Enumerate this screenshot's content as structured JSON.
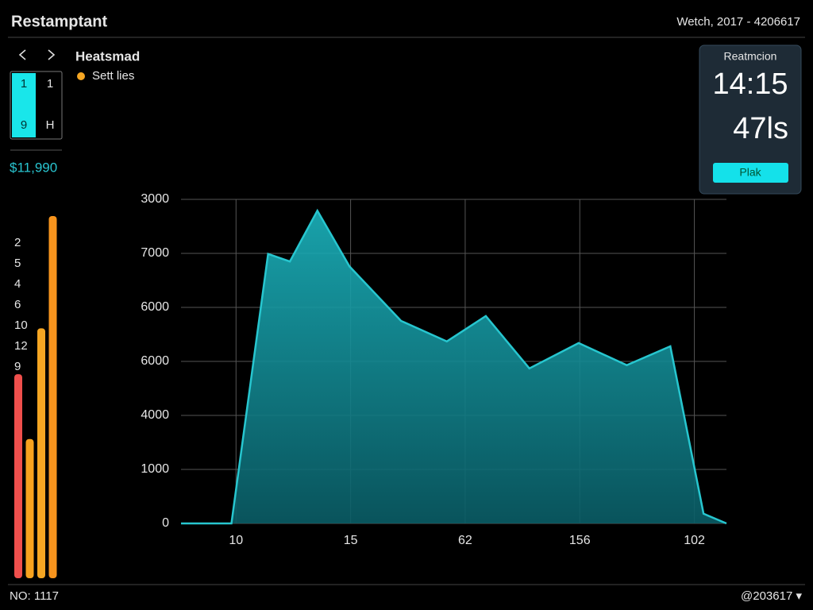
{
  "header": {
    "title": "Restamptant",
    "date": "Wetch, 2017 - 4206617"
  },
  "calendar": {
    "cells": [
      "1",
      "1",
      "9",
      "H"
    ]
  },
  "price": "$11,990",
  "panel": {
    "title": "Reatmcion",
    "time": "14:15",
    "value": "47ls",
    "button": "Plak"
  },
  "footer": {
    "left": "NO: 1117",
    "right": "@203617 ▾"
  },
  "chart_data": [
    {
      "type": "area",
      "title": "Heatsmad",
      "x": [
        -0.48,
        -0.04,
        0.28,
        0.47,
        0.71,
        0.99,
        1.44,
        1.84,
        2.18,
        2.56,
        2.99,
        3.41,
        3.79,
        4.08,
        4.28
      ],
      "series": [
        {
          "name": "Sett lies",
          "color": "#f5a623",
          "values": [
            0,
            0,
            4.99,
            4.85,
            5.79,
            4.76,
            3.75,
            3.37,
            3.84,
            2.87,
            3.34,
            2.93,
            3.28,
            0.18,
            0
          ]
        }
      ],
      "area_color": "#27c6cf",
      "xlim": [
        -0.48,
        4.28
      ],
      "ylim": [
        0,
        6
      ],
      "xticks": [
        {
          "value": 0,
          "label": "10"
        },
        {
          "value": 1,
          "label": "15"
        },
        {
          "value": 2,
          "label": "62"
        },
        {
          "value": 3,
          "label": "156"
        },
        {
          "value": 4,
          "label": "102"
        }
      ],
      "yticks": [
        {
          "value": 0,
          "label": "0"
        },
        {
          "value": 1,
          "label": "1000"
        },
        {
          "value": 2,
          "label": "4000"
        },
        {
          "value": 3,
          "label": "6000"
        },
        {
          "value": 4,
          "label": "6000"
        },
        {
          "value": 5,
          "label": "7000"
        },
        {
          "value": 6,
          "label": "3000"
        }
      ],
      "grid": true
    },
    {
      "type": "bar",
      "categories": [
        null,
        null,
        null,
        null
      ],
      "values": [
        258,
        176,
        316,
        458
      ],
      "colors": [
        "#ef4f4c",
        "#f7a21e",
        "#f5a623",
        "#f7941d"
      ],
      "ylim": [
        0,
        460
      ],
      "annotations": [
        "2",
        "5",
        "4",
        "6",
        "10",
        "12",
        "9"
      ]
    }
  ]
}
